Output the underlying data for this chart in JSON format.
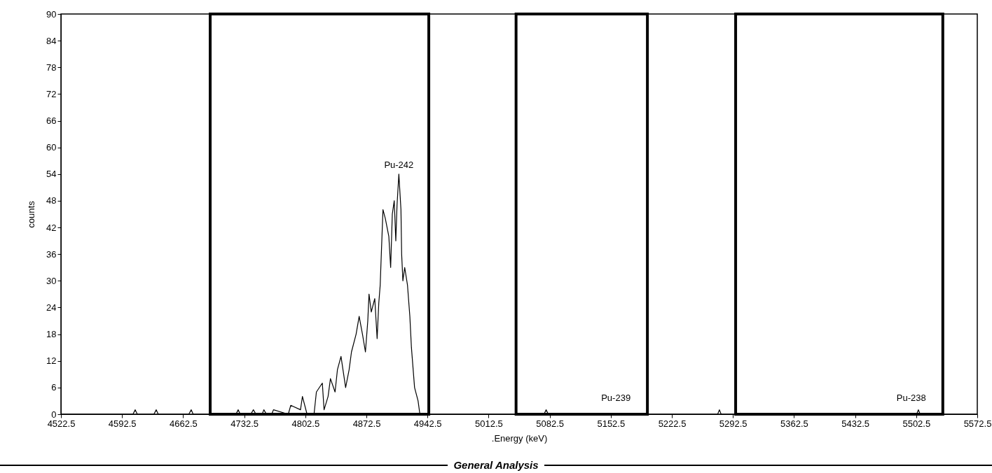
{
  "chart_data": {
    "type": "line",
    "xlabel": ".Energy (keV)",
    "ylabel": "counts",
    "x": [
      4522.5,
      4605,
      4607.6,
      4610,
      4629,
      4631.7,
      4634,
      4669,
      4671.8,
      4674,
      4723,
      4725.6,
      4728,
      4740,
      4743,
      4746,
      4753,
      4755,
      4758,
      4764,
      4766,
      4783,
      4785.8,
      4797,
      4799.2,
      4804.5,
      4812.5,
      4815.2,
      4822,
      4824,
      4828.6,
      4831.3,
      4836.6,
      4839.3,
      4843.4,
      4848.7,
      4852.7,
      4855.4,
      4860.7,
      4864.2,
      4868,
      4871.4,
      4874.1,
      4875.5,
      4878.1,
      4882.1,
      4884.8,
      4886.7,
      4888.3,
      4889.6,
      4891.5,
      4894.2,
      4898.2,
      4900.3,
      4902.2,
      4904.4,
      4906.2,
      4907.6,
      4909.7,
      4912.1,
      4912.9,
      4914.3,
      4916.4,
      4919.6,
      4922.3,
      4924.1,
      4927.7,
      4931.7,
      4933.8,
      5076,
      5078.4,
      5081,
      5275,
      5277,
      5279,
      5503,
      5505,
      5507,
      5572.5
    ],
    "series": [
      {
        "color": "#000000",
        "values": [
          0,
          0,
          1,
          0,
          0,
          1,
          0,
          0,
          1,
          0,
          0,
          1,
          0,
          0,
          1,
          0,
          0,
          1,
          0,
          0,
          1,
          0,
          2,
          1,
          4,
          0,
          0,
          5,
          7,
          1,
          4,
          8,
          5,
          10,
          13,
          6,
          10,
          14,
          18,
          22,
          18,
          14,
          21,
          27,
          23,
          26,
          17,
          25,
          29,
          36,
          46,
          44,
          40,
          33,
          45,
          48,
          39,
          47,
          54,
          46,
          36,
          30,
          33,
          29,
          22,
          15,
          6,
          3,
          0,
          0,
          1,
          0,
          0,
          1,
          0,
          0,
          1,
          0,
          0
        ]
      }
    ],
    "xlim": [
      4522.5,
      5572.5
    ],
    "xticks": [
      4522.5,
      4592.5,
      4662.5,
      4732.5,
      4802.5,
      4872.5,
      4942.5,
      5012.5,
      5082.5,
      5152.5,
      5222.5,
      5292.5,
      5362.5,
      5432.5,
      5502.5,
      5572.5
    ],
    "ylim": [
      0,
      90
    ],
    "yticks": [
      0,
      6,
      12,
      18,
      24,
      30,
      36,
      42,
      48,
      54,
      60,
      66,
      72,
      78,
      84,
      90
    ],
    "grid": false,
    "marker": "none",
    "line_style": "solid",
    "bands": [
      {
        "axis": "x",
        "from": 4693.5,
        "to": 4944,
        "color": "#000000"
      },
      {
        "axis": "x",
        "from": 5044,
        "to": 5194.5,
        "label": "Pu-239",
        "color": "#000000"
      },
      {
        "axis": "x",
        "from": 5295.6,
        "to": 5533,
        "label": "Pu-238",
        "color": "#000000"
      }
    ],
    "annotations": [
      {
        "text": "Pu-242",
        "x": 4909.7,
        "y": 54
      },
      "General Analysis"
    ]
  }
}
